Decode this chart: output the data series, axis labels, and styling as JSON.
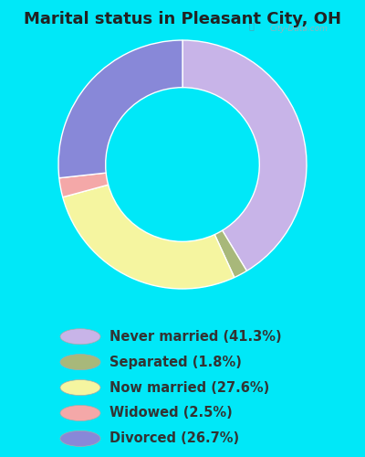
{
  "title": "Marital status in Pleasant City, OH",
  "slices": [
    {
      "label": "Never married (41.3%)",
      "value": 41.3,
      "color": "#c8b4e8"
    },
    {
      "label": "Separated (1.8%)",
      "value": 1.8,
      "color": "#a8b87a"
    },
    {
      "label": "Now married (27.6%)",
      "value": 27.6,
      "color": "#f5f5a0"
    },
    {
      "label": "Widowed (2.5%)",
      "value": 2.5,
      "color": "#f4a8a8"
    },
    {
      "label": "Divorced (26.7%)",
      "value": 26.7,
      "color": "#8888d8"
    }
  ],
  "bg_color": "#00e8f8",
  "chart_bg": "#daeee6",
  "title_fontsize": 13,
  "legend_fontsize": 10.5,
  "title_color": "#222222",
  "legend_text_color": "#333333",
  "watermark": "City-Data.com",
  "start_angle": 90,
  "donut_width": 0.38
}
